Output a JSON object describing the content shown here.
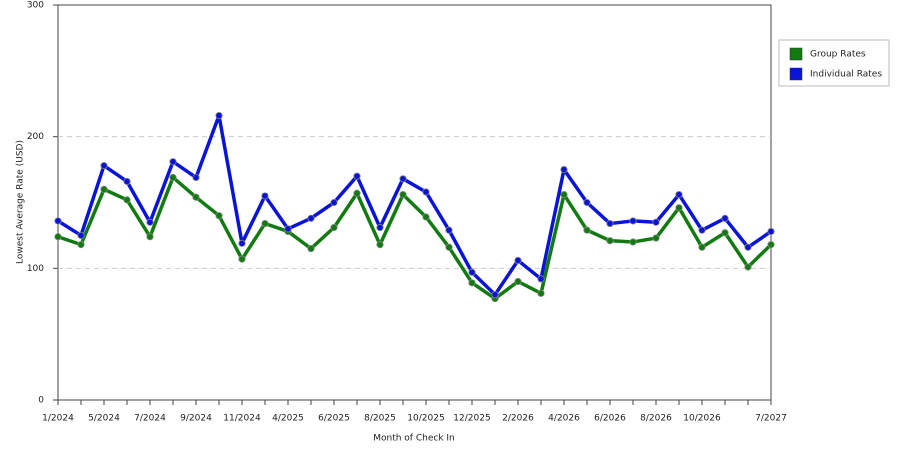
{
  "chart_data": {
    "type": "line",
    "x_label": "Month of Check In",
    "y_label": "Lowest Average Rate (USD)",
    "categories": [
      "1/2024",
      null,
      "5/2024",
      null,
      "7/2024",
      null,
      "9/2024",
      null,
      "11/2024",
      null,
      "4/2025",
      null,
      "6/2025",
      null,
      "8/2025",
      null,
      "10/2025",
      null,
      "12/2025",
      null,
      "2/2026",
      null,
      "4/2026",
      null,
      "6/2026",
      null,
      "8/2026",
      null,
      "10/2026",
      null,
      null,
      "7/2027"
    ],
    "series": [
      {
        "name": "Group Rates",
        "color": "#117a11",
        "values": [
          124,
          118,
          160,
          152,
          124,
          169,
          154,
          140,
          107,
          134,
          128,
          115,
          131,
          157,
          118,
          156,
          139,
          116,
          89,
          77,
          90,
          81,
          156,
          129,
          121,
          120,
          123,
          146,
          116,
          127,
          101,
          118
        ]
      },
      {
        "name": "Individual Rates",
        "color": "#0a14d6",
        "values": [
          136,
          125,
          178,
          166,
          135,
          181,
          169,
          216,
          119,
          155,
          130,
          138,
          150,
          170,
          131,
          168,
          158,
          129,
          97,
          80,
          106,
          92,
          175,
          150,
          134,
          136,
          135,
          156,
          129,
          138,
          116,
          128
        ]
      }
    ],
    "ylim": [
      0,
      300
    ],
    "yticks": [
      0,
      100,
      200,
      300
    ],
    "grid": true,
    "legend": "right"
  }
}
